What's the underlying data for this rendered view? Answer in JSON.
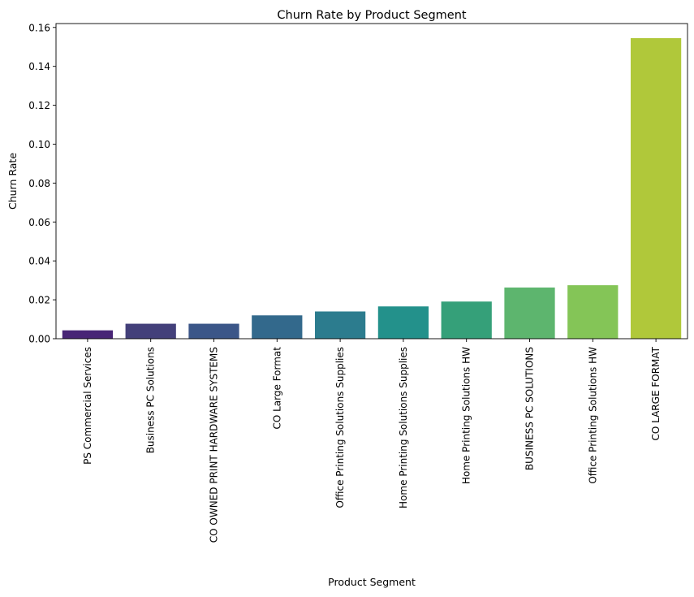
{
  "chart_data": {
    "type": "bar",
    "title": "Churn Rate by Product Segment",
    "xlabel": "Product Segment",
    "ylabel": "Churn Rate",
    "categories": [
      "PS Commercial Services",
      "Business PC Solutions",
      "CO OWNED PRINT HARDWARE SYSTEMS",
      "CO Large Format",
      "Office Printing Solutions Supplies",
      "Home Printing Solutions Supplies",
      "Home Printing Solutions HW",
      "BUSINESS PC SOLUTIONS",
      "Office Printing Solutions HW",
      "CO LARGE FORMAT"
    ],
    "values": [
      0.0043,
      0.0077,
      0.0077,
      0.012,
      0.014,
      0.0166,
      0.0191,
      0.0263,
      0.0275,
      0.1545
    ],
    "colors": [
      "#482576",
      "#43407a",
      "#3b5688",
      "#33698c",
      "#2c7c8e",
      "#23918b",
      "#35a079",
      "#5db56e",
      "#84c557",
      "#b0c83a"
    ],
    "ylim": [
      0,
      0.162
    ],
    "yticks": [
      "0.00",
      "0.02",
      "0.04",
      "0.06",
      "0.08",
      "0.10",
      "0.12",
      "0.14",
      "0.16"
    ],
    "grid": false,
    "legend": "none"
  }
}
